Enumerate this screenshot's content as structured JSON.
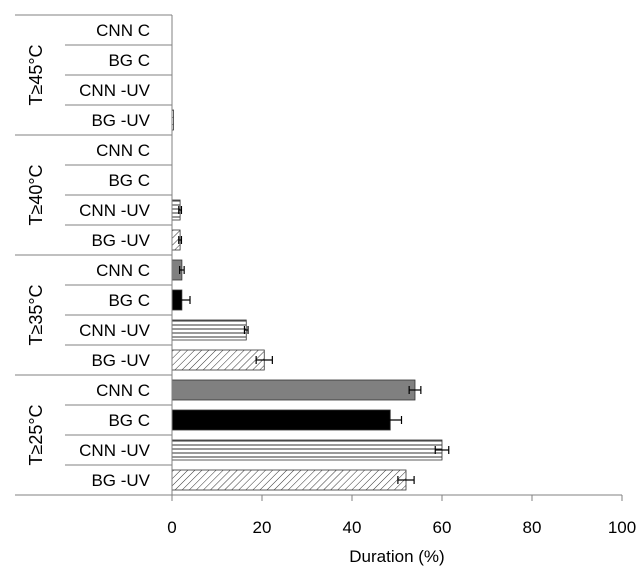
{
  "chart_data": {
    "type": "bar",
    "orientation": "horizontal",
    "xlabel": "Duration (%)",
    "xlim": [
      0,
      100
    ],
    "xticks": [
      0,
      20,
      40,
      60,
      80,
      100
    ],
    "grid": false,
    "legend": "none",
    "groups": [
      {
        "label": "T≥45°C",
        "bars": [
          {
            "label": "CNN C",
            "value": 0,
            "error": 0,
            "fill": "gray"
          },
          {
            "label": "BG C",
            "value": 0,
            "error": 0,
            "fill": "black"
          },
          {
            "label": "CNN -UV",
            "value": 0,
            "error": 0,
            "fill": "horizontal-lines"
          },
          {
            "label": "BG -UV",
            "value": 0.3,
            "error": 0,
            "fill": "diagonal-hatch"
          }
        ]
      },
      {
        "label": "T≥40°C",
        "bars": [
          {
            "label": "CNN C",
            "value": 0,
            "error": 0,
            "fill": "gray"
          },
          {
            "label": "BG C",
            "value": 0,
            "error": 0,
            "fill": "black"
          },
          {
            "label": "CNN -UV",
            "value": 1.8,
            "error": 0.3,
            "fill": "horizontal-lines"
          },
          {
            "label": "BG -UV",
            "value": 1.8,
            "error": 0.3,
            "fill": "diagonal-hatch"
          }
        ]
      },
      {
        "label": "T≥35°C",
        "bars": [
          {
            "label": "CNN C",
            "value": 2.2,
            "error": 0.5,
            "fill": "gray"
          },
          {
            "label": "BG C",
            "value": 2.2,
            "error": 1.8,
            "fill": "black"
          },
          {
            "label": "CNN -UV",
            "value": 16.5,
            "error": 0.4,
            "fill": "horizontal-lines"
          },
          {
            "label": "BG -UV",
            "value": 20.5,
            "error": 1.8,
            "fill": "diagonal-hatch"
          }
        ]
      },
      {
        "label": "T≥25°C",
        "bars": [
          {
            "label": "CNN C",
            "value": 54,
            "error": 1.3,
            "fill": "gray"
          },
          {
            "label": "BG C",
            "value": 48.5,
            "error": 2.5,
            "fill": "black"
          },
          {
            "label": "CNN -UV",
            "value": 60,
            "error": 1.5,
            "fill": "horizontal-lines"
          },
          {
            "label": "BG -UV",
            "value": 52,
            "error": 1.8,
            "fill": "diagonal-hatch"
          }
        ]
      }
    ],
    "colors": {
      "gray": "#808080",
      "black": "#000000",
      "axis": "#808080",
      "pattern_stroke": "#333333"
    }
  }
}
